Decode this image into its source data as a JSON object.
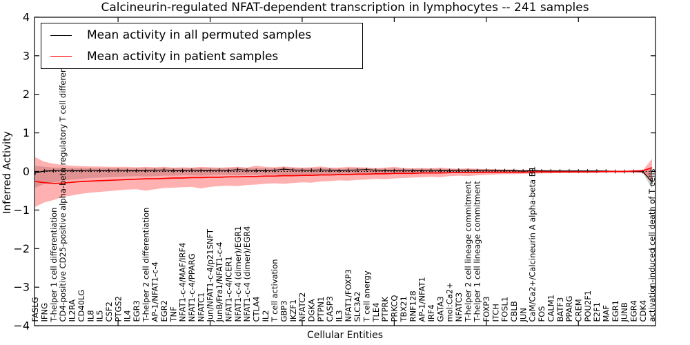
{
  "chart_data": {
    "type": "line",
    "title": "Calcineurin-regulated NFAT-dependent transcription in lymphocytes -- 241 samples",
    "xlabel": "Cellular Entities",
    "ylabel": "Inferred Activity",
    "ylim": [
      -4,
      4
    ],
    "y_tick_labels": [
      "4",
      "3",
      "2",
      "1",
      "0",
      "−1",
      "−2",
      "−3",
      "−4"
    ],
    "y_tick_values": [
      4,
      3,
      2,
      1,
      0,
      -1,
      -2,
      -3,
      -4
    ],
    "x_major_tick_indices": [
      9,
      19,
      29,
      39,
      49,
      59
    ],
    "zero_line_value": 0,
    "grid": false,
    "legend_position": "upper left",
    "categories": [
      "FASLG",
      "IFNG",
      "T-helper 1 cell differentiation",
      "CD4-positive CD25-positive alpha-beta regulatory T cell differentiation",
      "IL2RA",
      "CD40LG",
      "IL8",
      "IL5",
      "CSF2",
      "PTGS2",
      "IL4",
      "EGR3",
      "T-helper 2 cell differentiation",
      "AP-1/NFAT1-c-4",
      "EGR2",
      "TNF",
      "NFAT1-c-4/MAF/IRF4",
      "NFAT1-c-4/PPARG",
      "NFATC1",
      "Jun/NFAT1-c-4/p21SNFT",
      "JunB/Fra1/NFAT1-c-4",
      "NFAT1-c-4/ICER1",
      "NFAT1-c-4 (dimer)/EGR1",
      "NFAT1-c-4 (dimer)/EGR4",
      "CTLA4",
      "IL2",
      "T cell activation",
      "GBP3",
      "IKZF1",
      "NFATC2",
      "DGKA",
      "PTPN1",
      "CASP3",
      "IL3",
      "NFAT1/FOXP3",
      "SLC3A2",
      "T cell anergy",
      "TLE4",
      "PTPRK",
      "PRKCQ",
      "TBX21",
      "RNF128",
      "AP-1/NFAT1",
      "IRF4",
      "GATA3",
      "mol:Ca2+",
      "NFATC3",
      "T-helper 2 cell lineage commitment",
      "T-helper 1 cell lineage commitment",
      "FOXP3",
      "ITCH",
      "FOSL1",
      "CBLB",
      "JUN",
      "CaM/Ca2+/Calcineurin A alpha-beta B1",
      "FOS",
      "CALM1",
      "BATF3",
      "PPARG",
      "CREM",
      "POU2F1",
      "E2F1",
      "MAF",
      "EGR1",
      "JUNB",
      "EGR4",
      "CDK4",
      "activation-induced cell death of T cells"
    ],
    "series": [
      {
        "name": "Mean activity in all permuted samples",
        "color": "#000000",
        "values": [
          -0.04,
          0.01,
          0.02,
          0.03,
          0.02,
          0.02,
          0.03,
          0.02,
          0.02,
          0.03,
          0.02,
          0.02,
          0.02,
          0.03,
          0.04,
          0.02,
          0.02,
          0.03,
          0.02,
          0.02,
          0.03,
          0.02,
          0.05,
          0.03,
          0.02,
          0.02,
          0.03,
          0.06,
          0.04,
          0.03,
          0.03,
          0.04,
          0.03,
          0.02,
          0.03,
          0.04,
          0.05,
          0.03,
          0.02,
          0.02,
          0.03,
          0.02,
          0.02,
          0.03,
          0.02,
          0.02,
          0.03,
          0.02,
          0.02,
          0.03,
          0.02,
          0.02,
          0.02,
          0.01,
          0.02,
          0.01,
          0.01,
          0.01,
          0.01,
          0.01,
          0.01,
          0.01,
          0.01,
          0.0,
          0.0,
          0.0,
          0.0,
          -0.28
        ],
        "band": {
          "upper": [
            0.15,
            0.12,
            0.1,
            0.1,
            0.09,
            0.09,
            0.09,
            0.08,
            0.09,
            0.08,
            0.08,
            0.08,
            0.09,
            0.08,
            0.09,
            0.08,
            0.08,
            0.08,
            0.09,
            0.08,
            0.08,
            0.08,
            0.1,
            0.08,
            0.09,
            0.08,
            0.08,
            0.11,
            0.09,
            0.08,
            0.08,
            0.09,
            0.08,
            0.07,
            0.08,
            0.09,
            0.09,
            0.07,
            0.07,
            0.08,
            0.07,
            0.07,
            0.07,
            0.07,
            0.07,
            0.06,
            0.06,
            0.06,
            0.06,
            0.06,
            0.05,
            0.05,
            0.05,
            0.04,
            0.04,
            0.04,
            0.04,
            0.03,
            0.03,
            0.03,
            0.03,
            0.03,
            0.03,
            0.02,
            0.02,
            0.02,
            0.03,
            0.1
          ],
          "lower": [
            -0.42,
            -0.32,
            -0.28,
            -0.24,
            -0.21,
            -0.19,
            -0.17,
            -0.16,
            -0.15,
            -0.14,
            -0.13,
            -0.12,
            -0.13,
            -0.12,
            -0.11,
            -0.11,
            -0.1,
            -0.1,
            -0.11,
            -0.1,
            -0.09,
            -0.09,
            -0.1,
            -0.09,
            -0.09,
            -0.08,
            -0.08,
            -0.12,
            -0.09,
            -0.08,
            -0.08,
            -0.08,
            -0.07,
            -0.07,
            -0.07,
            -0.07,
            -0.07,
            -0.06,
            -0.06,
            -0.06,
            -0.06,
            -0.05,
            -0.05,
            -0.05,
            -0.05,
            -0.05,
            -0.04,
            -0.04,
            -0.04,
            -0.04,
            -0.04,
            -0.03,
            -0.03,
            -0.03,
            -0.03,
            -0.03,
            -0.03,
            -0.03,
            -0.02,
            -0.02,
            -0.02,
            -0.02,
            -0.02,
            -0.02,
            -0.02,
            -0.02,
            -0.03,
            -0.45
          ],
          "fill": "#8a8a8a",
          "fill_opacity": 0.42
        }
      },
      {
        "name": "Mean activity in patient samples",
        "color": "#ff0000",
        "values": [
          -0.26,
          -0.29,
          -0.31,
          -0.3,
          -0.28,
          -0.26,
          -0.25,
          -0.24,
          -0.23,
          -0.22,
          -0.21,
          -0.2,
          -0.19,
          -0.19,
          -0.18,
          -0.17,
          -0.17,
          -0.16,
          -0.16,
          -0.15,
          -0.15,
          -0.14,
          -0.14,
          -0.13,
          -0.13,
          -0.12,
          -0.12,
          -0.11,
          -0.11,
          -0.1,
          -0.1,
          -0.09,
          -0.09,
          -0.08,
          -0.08,
          -0.07,
          -0.07,
          -0.06,
          -0.06,
          -0.05,
          -0.05,
          -0.05,
          -0.04,
          -0.04,
          -0.04,
          -0.03,
          -0.03,
          -0.03,
          -0.03,
          -0.02,
          -0.02,
          -0.02,
          -0.02,
          -0.02,
          -0.01,
          -0.01,
          -0.01,
          -0.01,
          -0.01,
          -0.01,
          -0.01,
          -0.01,
          0.0,
          0.0,
          0.0,
          0.01,
          0.02,
          0.1
        ],
        "band": {
          "upper": [
            0.37,
            0.25,
            0.2,
            0.17,
            0.15,
            0.14,
            0.13,
            0.13,
            0.12,
            0.12,
            0.12,
            0.11,
            0.12,
            0.11,
            0.12,
            0.1,
            0.11,
            0.1,
            0.12,
            0.11,
            0.1,
            0.11,
            0.12,
            0.1,
            0.15,
            0.12,
            0.11,
            0.13,
            0.11,
            0.1,
            0.11,
            0.13,
            0.1,
            0.1,
            0.12,
            0.11,
            0.1,
            0.09,
            0.1,
            0.12,
            0.09,
            0.08,
            0.09,
            0.08,
            0.1,
            0.08,
            0.07,
            0.08,
            0.07,
            0.06,
            0.06,
            0.05,
            0.05,
            0.04,
            0.04,
            0.04,
            0.03,
            0.03,
            0.03,
            0.03,
            0.02,
            0.02,
            0.02,
            0.02,
            0.02,
            0.02,
            0.03,
            0.33
          ],
          "lower": [
            -0.92,
            -0.8,
            -0.74,
            -0.66,
            -0.62,
            -0.58,
            -0.55,
            -0.53,
            -0.51,
            -0.49,
            -0.47,
            -0.46,
            -0.5,
            -0.46,
            -0.43,
            -0.42,
            -0.41,
            -0.4,
            -0.44,
            -0.4,
            -0.38,
            -0.37,
            -0.38,
            -0.35,
            -0.34,
            -0.32,
            -0.31,
            -0.32,
            -0.3,
            -0.28,
            -0.29,
            -0.26,
            -0.25,
            -0.23,
            -0.24,
            -0.22,
            -0.21,
            -0.19,
            -0.2,
            -0.18,
            -0.17,
            -0.16,
            -0.15,
            -0.14,
            -0.15,
            -0.12,
            -0.11,
            -0.12,
            -0.1,
            -0.09,
            -0.08,
            -0.07,
            -0.07,
            -0.06,
            -0.06,
            -0.05,
            -0.05,
            -0.04,
            -0.04,
            -0.04,
            -0.03,
            -0.03,
            -0.03,
            -0.03,
            -0.03,
            -0.03,
            -0.05,
            -0.25
          ],
          "fill": "#ff3333",
          "fill_opacity": 0.38
        }
      }
    ]
  }
}
